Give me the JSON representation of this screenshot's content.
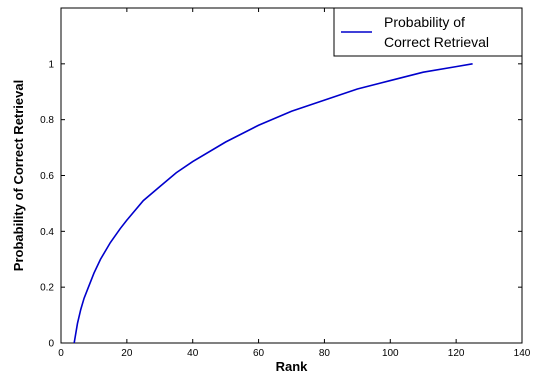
{
  "chart_data": {
    "type": "line",
    "title": "",
    "xlabel": "Rank",
    "ylabel": "Probability of Correct Retrieval",
    "xlim": [
      0,
      140
    ],
    "ylim": [
      0,
      1.2
    ],
    "xticks": [
      "0",
      "20",
      "40",
      "60",
      "80",
      "100",
      "120",
      "140"
    ],
    "yticks": [
      "0",
      "0.2",
      "0.4",
      "0.6",
      "0.8",
      "1"
    ],
    "grid": false,
    "legend_position": "top-right",
    "series": [
      {
        "name": "Probability of Correct Retrieval",
        "color": "#0000cc",
        "x": [
          4,
          5,
          6,
          7,
          8,
          10,
          12,
          15,
          18,
          20,
          25,
          30,
          35,
          40,
          50,
          60,
          70,
          80,
          90,
          100,
          110,
          120,
          125
        ],
        "y": [
          0.0,
          0.07,
          0.12,
          0.16,
          0.19,
          0.25,
          0.3,
          0.36,
          0.41,
          0.44,
          0.51,
          0.56,
          0.61,
          0.65,
          0.72,
          0.78,
          0.83,
          0.87,
          0.91,
          0.94,
          0.97,
          0.99,
          1.0
        ]
      }
    ]
  }
}
